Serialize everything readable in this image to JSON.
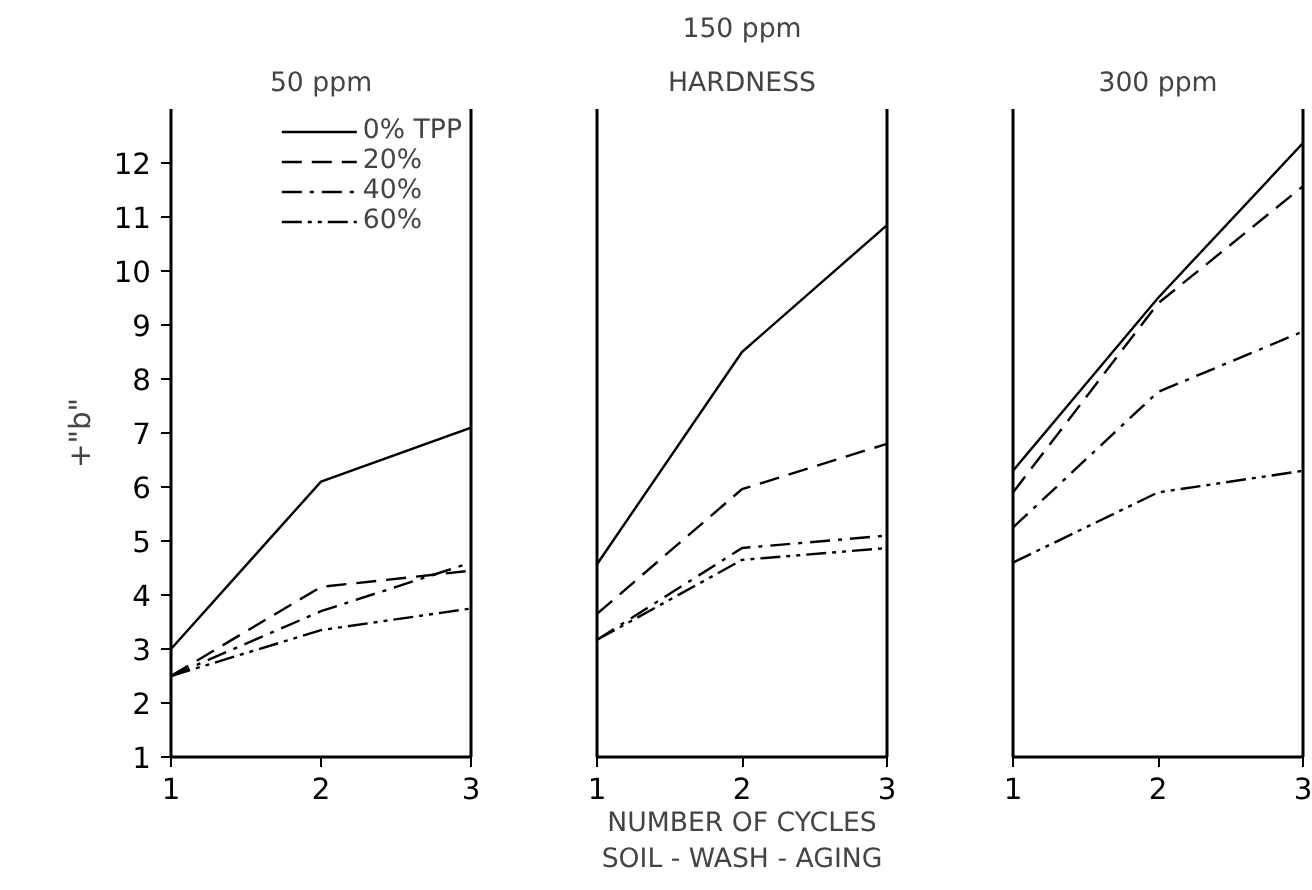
{
  "chart_data": [
    {
      "type": "line",
      "title": "50 ppm",
      "ylabel": "+\"b\"",
      "x": [
        1,
        2,
        3
      ],
      "xlim": [
        1,
        3
      ],
      "xticks": [
        1,
        2,
        3
      ],
      "ylim": [
        1,
        13
      ],
      "yticks": [
        1,
        2,
        3,
        4,
        5,
        6,
        7,
        8,
        9,
        10,
        11,
        12
      ],
      "grid": false,
      "legend": "top right",
      "marker": "none",
      "series": [
        {
          "name": "0% TPP",
          "color": "#000000",
          "line_style": "solid",
          "values": [
            3.0,
            6.1,
            7.1
          ]
        },
        {
          "name": "20%",
          "color": "#000000",
          "line_style": "dashed",
          "values": [
            2.5,
            4.15,
            4.45
          ]
        },
        {
          "name": "40%",
          "color": "#000000",
          "line_style": "dashdot",
          "values": [
            2.5,
            3.7,
            4.6
          ]
        },
        {
          "name": "60%",
          "color": "#000000",
          "line_style": "dashdotdot",
          "values": [
            2.5,
            3.35,
            3.75
          ]
        }
      ]
    },
    {
      "type": "line",
      "title": "150 ppm",
      "annotations": [
        "HARDNESS"
      ],
      "xlabel": "NUMBER OF CYCLES\nSOIL - WASH - AGING",
      "x": [
        1,
        2,
        3
      ],
      "xlim": [
        1,
        3
      ],
      "xticks": [
        1,
        2,
        3
      ],
      "ylim": [
        1,
        13
      ],
      "yticks": [
        1,
        2,
        3,
        4,
        5,
        6,
        7,
        8,
        9,
        10,
        11,
        12
      ],
      "tick_labels": "x",
      "grid": false,
      "marker": "none",
      "series": [
        {
          "color": "#000000",
          "line_style": "solid",
          "values": [
            4.57,
            8.5,
            10.85
          ]
        },
        {
          "color": "#000000",
          "line_style": "dashed",
          "values": [
            3.65,
            5.96,
            6.8
          ]
        },
        {
          "color": "#000000",
          "line_style": "dashdot",
          "values": [
            3.17,
            4.87,
            5.1
          ]
        },
        {
          "color": "#000000",
          "line_style": "dashdotdot",
          "values": [
            3.17,
            4.65,
            4.87
          ]
        }
      ]
    },
    {
      "type": "line",
      "title": "300 ppm",
      "x": [
        1,
        2,
        3
      ],
      "xlim": [
        1,
        3
      ],
      "xticks": [
        1,
        2,
        3
      ],
      "ylim": [
        1,
        13
      ],
      "yticks": [
        1,
        2,
        3,
        4,
        5,
        6,
        7,
        8,
        9,
        10,
        11,
        12
      ],
      "tick_labels": "x",
      "grid": false,
      "marker": "none",
      "series": [
        {
          "color": "#000000",
          "line_style": "solid",
          "values": [
            6.3,
            9.5,
            12.37
          ]
        },
        {
          "color": "#000000",
          "line_style": "dashed",
          "values": [
            5.9,
            9.4,
            11.57
          ]
        },
        {
          "color": "#000000",
          "line_style": "dashdot",
          "values": [
            5.25,
            7.76,
            8.88
          ]
        },
        {
          "color": "#000000",
          "line_style": "dashdotdot",
          "values": [
            4.6,
            5.9,
            6.3
          ]
        }
      ]
    }
  ]
}
